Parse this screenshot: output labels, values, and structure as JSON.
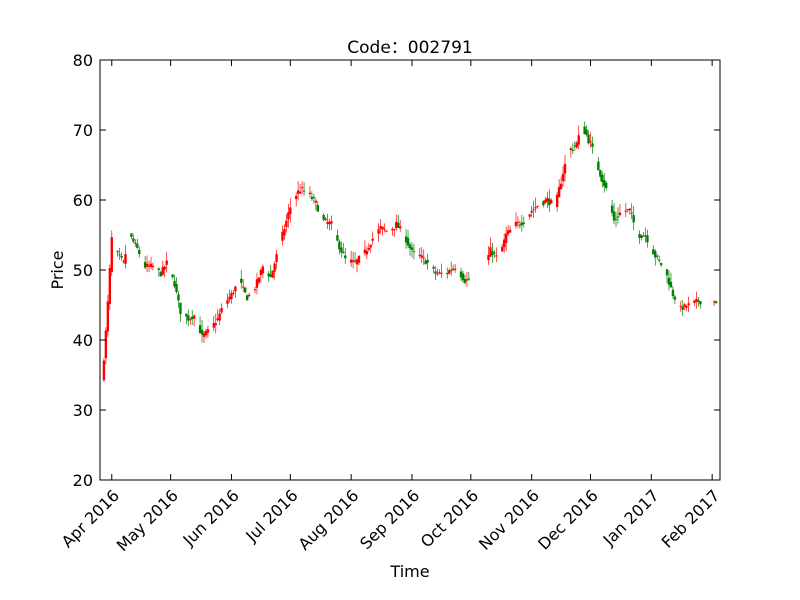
{
  "chart_data": {
    "type": "candlestick",
    "title": "Code：002791",
    "xlabel": "Time",
    "ylabel": "Price",
    "ylim": [
      20,
      80
    ],
    "xlim": [
      "2016-03-26",
      "2017-02-05"
    ],
    "yticks": [
      20,
      30,
      40,
      50,
      60,
      70,
      80
    ],
    "xticks": [
      {
        "date": "2016-04-01",
        "label": "Apr 2016"
      },
      {
        "date": "2016-05-01",
        "label": "May 2016"
      },
      {
        "date": "2016-06-01",
        "label": "Jun 2016"
      },
      {
        "date": "2016-07-01",
        "label": "Jul 2016"
      },
      {
        "date": "2016-08-01",
        "label": "Aug 2016"
      },
      {
        "date": "2016-09-01",
        "label": "Sep 2016"
      },
      {
        "date": "2016-10-01",
        "label": "Oct 2016"
      },
      {
        "date": "2016-11-01",
        "label": "Nov 2016"
      },
      {
        "date": "2016-12-01",
        "label": "Dec 2016"
      },
      {
        "date": "2017-01-01",
        "label": "Jan 2017"
      },
      {
        "date": "2017-02-01",
        "label": "Feb 2017"
      }
    ],
    "colors": {
      "up": "#ff0000",
      "down": "#008000"
    },
    "grid": false,
    "trend": [
      [
        "2016-03-26",
        29.0
      ],
      [
        "2016-03-27",
        34.0
      ],
      [
        "2016-03-28",
        37.4
      ],
      [
        "2016-03-29",
        41.2
      ],
      [
        "2016-03-30",
        45.3
      ],
      [
        "2016-03-31",
        50.0
      ],
      [
        "2016-04-01",
        54.5
      ],
      [
        "2016-04-03",
        52.5
      ],
      [
        "2016-04-07",
        51.0
      ],
      [
        "2016-04-10",
        55.0
      ],
      [
        "2016-04-14",
        53.0
      ],
      [
        "2016-04-18",
        50.5
      ],
      [
        "2016-04-22",
        50.5
      ],
      [
        "2016-04-26",
        49.5
      ],
      [
        "2016-04-29",
        51.0
      ],
      [
        "2016-05-03",
        48.0
      ],
      [
        "2016-05-06",
        44.0
      ],
      [
        "2016-05-10",
        43.0
      ],
      [
        "2016-05-13",
        43.5
      ],
      [
        "2016-05-17",
        40.5
      ],
      [
        "2016-05-21",
        41.5
      ],
      [
        "2016-05-25",
        43.0
      ],
      [
        "2016-05-28",
        45.0
      ],
      [
        "2016-06-01",
        46.5
      ],
      [
        "2016-06-05",
        48.5
      ],
      [
        "2016-06-09",
        46.0
      ],
      [
        "2016-06-13",
        47.5
      ],
      [
        "2016-06-17",
        50.5
      ],
      [
        "2016-06-21",
        49.0
      ],
      [
        "2016-06-25",
        53.0
      ],
      [
        "2016-06-29",
        57.0
      ],
      [
        "2016-07-02",
        60.0
      ],
      [
        "2016-07-06",
        61.5
      ],
      [
        "2016-07-10",
        61.0
      ],
      [
        "2016-07-14",
        59.5
      ],
      [
        "2016-07-18",
        57.0
      ],
      [
        "2016-07-22",
        56.5
      ],
      [
        "2016-07-25",
        54.0
      ],
      [
        "2016-07-29",
        51.5
      ],
      [
        "2016-08-03",
        51.0
      ],
      [
        "2016-08-08",
        52.5
      ],
      [
        "2016-08-12",
        54.5
      ],
      [
        "2016-08-16",
        56.0
      ],
      [
        "2016-08-20",
        55.5
      ],
      [
        "2016-08-24",
        56.5
      ],
      [
        "2016-08-28",
        55.0
      ],
      [
        "2016-09-01",
        52.5
      ],
      [
        "2016-09-05",
        52.0
      ],
      [
        "2016-09-09",
        51.0
      ],
      [
        "2016-09-13",
        49.5
      ],
      [
        "2016-09-18",
        49.5
      ],
      [
        "2016-09-23",
        50.5
      ],
      [
        "2016-09-28",
        48.5
      ],
      [
        "2016-10-03",
        48.8
      ],
      [
        "2016-10-08",
        50.5
      ],
      [
        "2016-10-11",
        52.8
      ],
      [
        "2016-10-15",
        51.5
      ],
      [
        "2016-10-19",
        55.0
      ],
      [
        "2016-10-24",
        56.5
      ],
      [
        "2016-10-28",
        57.0
      ],
      [
        "2016-11-01",
        58.5
      ],
      [
        "2016-11-05",
        59.5
      ],
      [
        "2016-11-09",
        60.0
      ],
      [
        "2016-11-13",
        59.0
      ],
      [
        "2016-11-17",
        64.0
      ],
      [
        "2016-11-20",
        67.0
      ],
      [
        "2016-11-24",
        68.0
      ],
      [
        "2016-11-27",
        70.5
      ],
      [
        "2016-12-01",
        68.0
      ],
      [
        "2016-12-05",
        64.5
      ],
      [
        "2016-12-09",
        61.5
      ],
      [
        "2016-12-13",
        57.0
      ],
      [
        "2016-12-17",
        58.5
      ],
      [
        "2016-12-21",
        58.5
      ],
      [
        "2016-12-25",
        55.0
      ],
      [
        "2016-12-29",
        55.0
      ],
      [
        "2017-01-03",
        52.0
      ],
      [
        "2017-01-08",
        50.0
      ],
      [
        "2017-01-12",
        46.5
      ],
      [
        "2017-01-16",
        44.5
      ],
      [
        "2017-01-20",
        45.0
      ],
      [
        "2017-01-24",
        45.5
      ],
      [
        "2017-02-03",
        45.5
      ]
    ]
  }
}
